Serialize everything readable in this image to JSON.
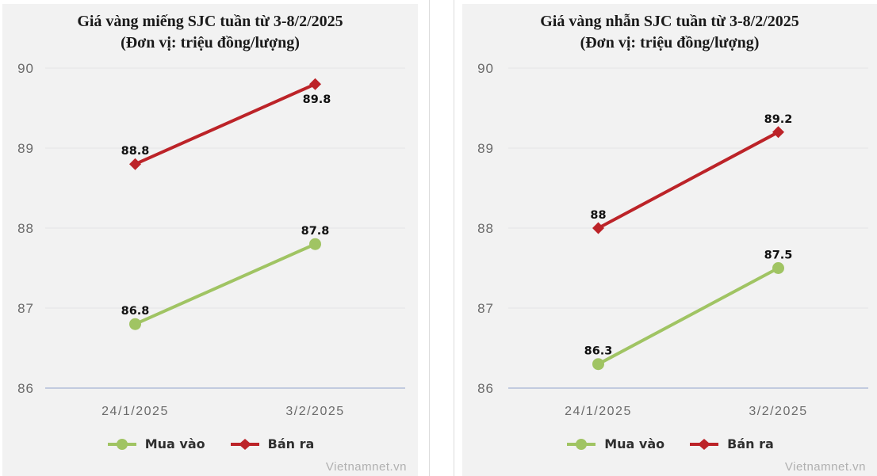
{
  "page_background": "#ffffff",
  "card_background": "#f2f2f2",
  "divider_color": "#dcdcdc",
  "styles": {
    "grid_color": "#e4e4e6",
    "axis_line_color": "#c2cbdf",
    "tick_label_color": "#6b6b6b",
    "data_label_color": "#111111",
    "legend_text_color": "#2f2f2f",
    "watermark_color": "#b0b0b0",
    "title_color": "#1a1a1a"
  },
  "chart_data": [
    {
      "type": "line",
      "title": "Giá vàng miếng SJC tuần từ 3-8/2/2025",
      "subtitle": "(Đơn vị: triệu đồng/lượng)",
      "categories": [
        "24/1/2025",
        "3/2/2025"
      ],
      "series": [
        {
          "name": "Mua vào",
          "color": "#a0c463",
          "marker": "circle",
          "values": [
            86.8,
            87.8
          ],
          "label_placement": [
            "above",
            "above"
          ]
        },
        {
          "name": "Bán ra",
          "color": "#bc2328",
          "marker": "diamond",
          "values": [
            88.8,
            89.8
          ],
          "label_placement": [
            "above",
            "below"
          ]
        }
      ],
      "ylim": [
        86,
        90
      ],
      "yticks": [
        86,
        87,
        88,
        89,
        90
      ],
      "grid": true,
      "legend_position": "bottom",
      "watermark": "Vietnamnet.vn"
    },
    {
      "type": "line",
      "title": "Giá vàng nhẫn SJC tuần từ 3-8/2/2025",
      "subtitle": "(Đơn vị: triệu đồng/lượng)",
      "categories": [
        "24/1/2025",
        "3/2/2025"
      ],
      "series": [
        {
          "name": "Mua vào",
          "color": "#a0c463",
          "marker": "circle",
          "values": [
            86.3,
            87.5
          ],
          "label_placement": [
            "above",
            "above"
          ]
        },
        {
          "name": "Bán ra",
          "color": "#bc2328",
          "marker": "diamond",
          "values": [
            88,
            89.2
          ],
          "label_placement": [
            "above",
            "above"
          ]
        }
      ],
      "ylim": [
        86,
        90
      ],
      "yticks": [
        86,
        87,
        88,
        89,
        90
      ],
      "grid": true,
      "legend_position": "bottom",
      "watermark": "Vietnamnet.vn"
    }
  ]
}
